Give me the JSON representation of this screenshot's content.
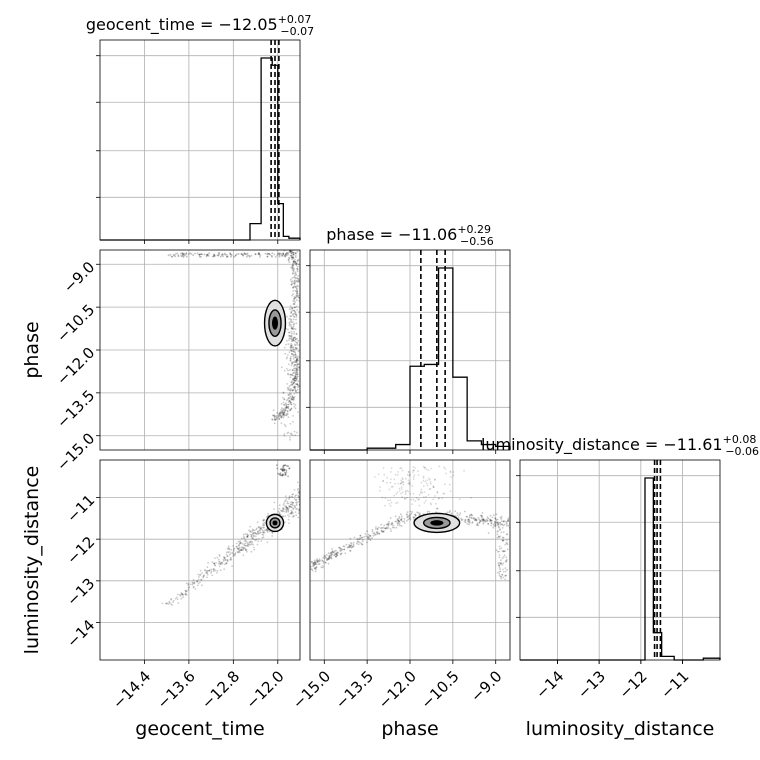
{
  "chart_data": {
    "type": "corner",
    "parameters": [
      "geocent_time",
      "phase",
      "luminosity_distance"
    ],
    "titles": [
      {
        "param": "geocent_time",
        "median": "−12.05",
        "plus": "+0.07",
        "minus": "−0.07"
      },
      {
        "param": "phase",
        "median": "−11.06",
        "plus": "+0.29",
        "minus": "−0.56"
      },
      {
        "param": "luminosity_distance",
        "median": "−11.61",
        "plus": "+0.08",
        "minus": "−0.06"
      }
    ],
    "ranges": {
      "geocent_time": [
        -15.2,
        -11.6
      ],
      "phase": [
        -15.5,
        -8.5
      ],
      "luminosity_distance": [
        -14.9,
        -10.1
      ]
    },
    "ticks": {
      "geocent_time": {
        "values": [
          -14.4,
          -13.6,
          -12.8,
          -12.0
        ],
        "labels": [
          "−14.4",
          "−13.6",
          "−12.8",
          "−12.0"
        ]
      },
      "phase": {
        "values": [
          -15.0,
          -13.5,
          -12.0,
          -10.5,
          -9.0
        ],
        "labels": [
          "−15.0",
          "−13.5",
          "−12.0",
          "−10.5",
          "−9.0"
        ]
      },
      "luminosity_distance": {
        "values": [
          -14,
          -13,
          -12,
          -11
        ],
        "labels": [
          "−14",
          "−13",
          "−12",
          "−11"
        ]
      }
    },
    "histograms": {
      "geocent_time": {
        "edges": [
          -15.2,
          -12.5,
          -12.3,
          -12.1,
          -12.0,
          -11.9,
          -11.8,
          -11.6
        ],
        "counts": [
          0,
          0.09,
          1.0,
          0.96,
          0.2,
          0.02,
          0.01
        ],
        "quantiles": [
          -12.12,
          -12.05,
          -11.98
        ]
      },
      "phase": {
        "edges": [
          -15.5,
          -14.5,
          -13.5,
          -12.5,
          -12.0,
          -11.5,
          -11.0,
          -10.5,
          -10.0,
          -9.5,
          -9.0,
          -8.5
        ],
        "counts": [
          0,
          0,
          0.01,
          0.03,
          0.46,
          0.47,
          1.0,
          0.4,
          0.05,
          0.03,
          0.02
        ],
        "quantiles": [
          -11.62,
          -11.06,
          -10.77
        ]
      },
      "luminosity_distance": {
        "edges": [
          -14.9,
          -11.9,
          -11.7,
          -11.5,
          -11.2,
          -10.5,
          -10.1
        ],
        "counts": [
          0,
          1.0,
          0.15,
          0.02,
          0,
          0.01
        ],
        "quantiles": [
          -11.67,
          -11.61,
          -11.53
        ]
      }
    },
    "scatter_panels": [
      {
        "x": "geocent_time",
        "y": "phase",
        "center": [
          -12.05,
          -11.06
        ]
      },
      {
        "x": "geocent_time",
        "y": "luminosity_distance",
        "center": [
          -12.05,
          -11.61
        ]
      },
      {
        "x": "phase",
        "y": "luminosity_distance",
        "center": [
          -11.06,
          -11.61
        ]
      }
    ],
    "grid": true,
    "legend": "none"
  }
}
